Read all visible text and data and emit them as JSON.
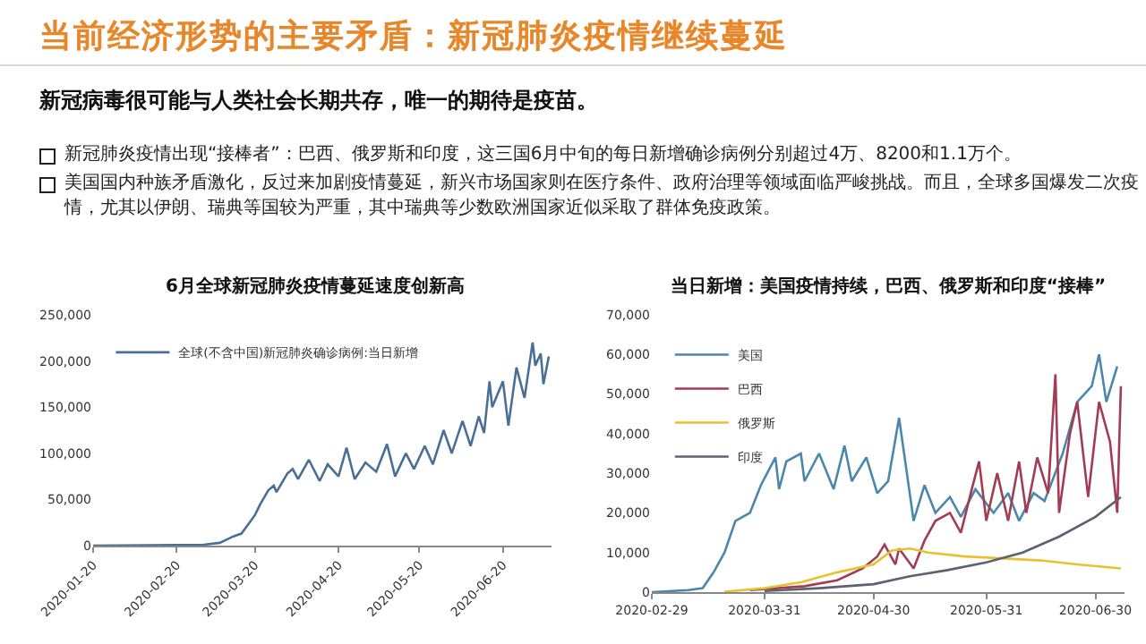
{
  "chart_data": [
    {
      "type": "line",
      "title": "6月全球新冠肺炎疫情蔓延速度创新高",
      "annotations": [
        "当前经济形势的主要矛盾：新冠肺炎疫情继续蔓延",
        "新冠病毒很可能与人类社会长期共存，唯一的期待是疫苗。",
        "新冠肺炎疫情出现“接棒者”：巴西、俄罗斯和印度，这三国6月中旬的每日新增确诊病例分别超过4万、8200和1.1万个。",
        "美国国内种族矛盾激化，反过来加剧疫情蔓延，新兴市场国家则在医疗条件、政府治理等领域面临严峻挑战。而且，全球多国爆发二次疫情，尤其以伊朗、瑞典等国较为严重，其中瑞典等少数欧洲国家近似采取了群体免疫政策。"
      ],
      "x": [
        "2020-01-20",
        "2020-02-10",
        "2020-03-01",
        "2020-03-07",
        "2020-03-12",
        "2020-03-15",
        "2020-03-18",
        "2020-03-20",
        "2020-03-22",
        "2020-03-25",
        "2020-03-27",
        "2020-03-28",
        "2020-04-01",
        "2020-04-03",
        "2020-04-05",
        "2020-04-09",
        "2020-04-13",
        "2020-04-16",
        "2020-04-20",
        "2020-04-23",
        "2020-04-26",
        "2020-04-30",
        "2020-05-04",
        "2020-05-08",
        "2020-05-11",
        "2020-05-15",
        "2020-05-18",
        "2020-05-22",
        "2020-05-25",
        "2020-05-29",
        "2020-06-01",
        "2020-06-05",
        "2020-06-08",
        "2020-06-11",
        "2020-06-13",
        "2020-06-15",
        "2020-06-16",
        "2020-06-20",
        "2020-06-22",
        "2020-06-25",
        "2020-06-28",
        "2020-07-01",
        "2020-07-02",
        "2020-07-04",
        "2020-07-05",
        "2020-07-07"
      ],
      "series": [
        {
          "name": "全球(不含中国)新冠肺炎确诊病例:当日新增",
          "color": "#4a6f96",
          "values": [
            0,
            500,
            1000,
            3000,
            10000,
            13000,
            25000,
            33000,
            45000,
            60000,
            65000,
            58000,
            78000,
            83000,
            72000,
            93000,
            70000,
            88000,
            75000,
            106000,
            72000,
            90000,
            80000,
            110000,
            75000,
            100000,
            83000,
            108000,
            88000,
            125000,
            100000,
            135000,
            108000,
            140000,
            122000,
            178000,
            150000,
            178000,
            130000,
            193000,
            160000,
            220000,
            195000,
            208000,
            175000,
            205000
          ]
        }
      ],
      "xlim": [
        "2020-01-20",
        "2020-07-08"
      ],
      "xticks": [
        "2020-01-20",
        "2020-02-20",
        "2020-03-20",
        "2020-04-20",
        "2020-05-20",
        "2020-06-20"
      ],
      "ylim": [
        0,
        250000
      ],
      "yticks": [
        {
          "value": 0,
          "label": "0"
        },
        {
          "value": 50000,
          "label": "50,000"
        },
        {
          "value": 100000,
          "label": "100,000"
        },
        {
          "value": 150000,
          "label": "150,000"
        },
        {
          "value": 200000,
          "label": "200,000"
        },
        {
          "value": 250000,
          "label": "250,000"
        }
      ],
      "grid": false,
      "legend": "top left",
      "marker": "none"
    },
    {
      "type": "line",
      "title": "当日新增：美国疫情持续，巴西、俄罗斯和印度“接棒”",
      "series": [
        {
          "name": "美国",
          "color": "#4b86ad",
          "x": [
            "2020-02-29",
            "2020-03-10",
            "2020-03-14",
            "2020-03-17",
            "2020-03-20",
            "2020-03-23",
            "2020-03-27",
            "2020-03-30",
            "2020-04-03",
            "2020-04-04",
            "2020-04-06",
            "2020-04-10",
            "2020-04-11",
            "2020-04-15",
            "2020-04-19",
            "2020-04-22",
            "2020-04-24",
            "2020-04-28",
            "2020-05-01",
            "2020-05-04",
            "2020-05-07",
            "2020-05-11",
            "2020-05-14",
            "2020-05-17",
            "2020-05-21",
            "2020-05-24",
            "2020-05-28",
            "2020-06-02",
            "2020-06-06",
            "2020-06-09",
            "2020-06-13",
            "2020-06-16",
            "2020-06-21",
            "2020-06-25",
            "2020-06-29",
            "2020-07-01",
            "2020-07-03",
            "2020-07-06"
          ],
          "values": [
            0,
            500,
            1000,
            5000,
            10000,
            18000,
            20000,
            27000,
            34000,
            26000,
            33000,
            35000,
            28000,
            35000,
            26000,
            37000,
            28000,
            34000,
            25000,
            28000,
            44000,
            18000,
            27000,
            20000,
            24000,
            19000,
            26000,
            20000,
            25000,
            18000,
            25000,
            23000,
            35000,
            48000,
            52000,
            60000,
            48000,
            57000
          ]
        },
        {
          "name": "巴西",
          "color": "#a33c52",
          "x": [
            "2020-03-27",
            "2020-04-11",
            "2020-04-20",
            "2020-04-27",
            "2020-05-01",
            "2020-05-03",
            "2020-05-06",
            "2020-05-07",
            "2020-05-11",
            "2020-05-14",
            "2020-05-17",
            "2020-05-21",
            "2020-05-24",
            "2020-05-27",
            "2020-05-29",
            "2020-05-31",
            "2020-06-03",
            "2020-06-06",
            "2020-06-09",
            "2020-06-11",
            "2020-06-14",
            "2020-06-17",
            "2020-06-19",
            "2020-06-20",
            "2020-06-23",
            "2020-06-25",
            "2020-06-28",
            "2020-07-01",
            "2020-07-04",
            "2020-07-06",
            "2020-07-07"
          ],
          "values": [
            500,
            1500,
            3000,
            6000,
            9000,
            12000,
            7000,
            11000,
            6000,
            13000,
            18000,
            20000,
            15000,
            26000,
            33000,
            18000,
            30000,
            18000,
            33000,
            20000,
            34000,
            25000,
            55000,
            20000,
            40000,
            48000,
            24000,
            48000,
            38000,
            20000,
            52000
          ]
        },
        {
          "name": "俄罗斯",
          "color": "#e6c32e",
          "x": [
            "2020-03-20",
            "2020-03-31",
            "2020-04-10",
            "2020-04-20",
            "2020-04-30",
            "2020-05-05",
            "2020-05-10",
            "2020-05-15",
            "2020-05-25",
            "2020-06-05",
            "2020-06-15",
            "2020-06-25",
            "2020-07-07"
          ],
          "values": [
            100,
            1000,
            2500,
            5000,
            7000,
            10500,
            11000,
            10000,
            9000,
            8500,
            8000,
            7000,
            6000
          ]
        },
        {
          "name": "印度",
          "color": "#5b6270",
          "x": [
            "2020-03-31",
            "2020-04-15",
            "2020-04-30",
            "2020-05-10",
            "2020-05-20",
            "2020-05-31",
            "2020-06-10",
            "2020-06-20",
            "2020-06-30",
            "2020-07-07"
          ],
          "values": [
            300,
            1000,
            2000,
            4000,
            5500,
            7500,
            10000,
            14000,
            19000,
            24000
          ]
        }
      ],
      "xlim": [
        "2020-02-29",
        "2020-07-08"
      ],
      "xticks": [
        "2020-02-29",
        "2020-03-31",
        "2020-04-30",
        "2020-05-31",
        "2020-06-30"
      ],
      "ylim": [
        0,
        70000
      ],
      "yticks": [
        {
          "value": 0,
          "label": "0"
        },
        {
          "value": 10000,
          "label": "10,000"
        },
        {
          "value": 20000,
          "label": "20,000"
        },
        {
          "value": 30000,
          "label": "30,000"
        },
        {
          "value": 40000,
          "label": "40,000"
        },
        {
          "value": 50000,
          "label": "50,000"
        },
        {
          "value": 60000,
          "label": "60,000"
        },
        {
          "value": 70000,
          "label": "70,000"
        }
      ],
      "grid": false,
      "legend": "top left",
      "marker": "none"
    }
  ]
}
